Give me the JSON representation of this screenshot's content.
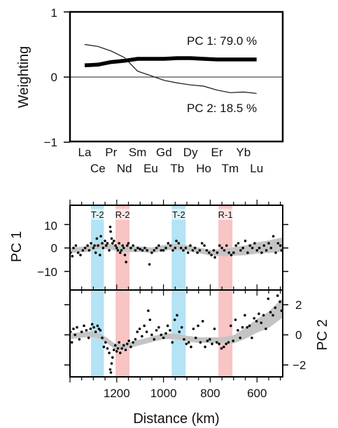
{
  "chart_data": [
    {
      "type": "line",
      "ylabel": "Weighting",
      "ylim": [
        -1,
        1
      ],
      "y_ticks": [
        "1",
        "0",
        "−1"
      ],
      "categories": [
        "La",
        "Ce",
        "Pr",
        "Nd",
        "Sm",
        "Eu",
        "Gd",
        "Tb",
        "Dy",
        "Ho",
        "Er",
        "Tm",
        "Yb",
        "Lu"
      ],
      "series": [
        {
          "name": "PC 1: 79.0 %",
          "values": [
            0.18,
            0.19,
            0.23,
            0.25,
            0.28,
            0.28,
            0.28,
            0.29,
            0.29,
            0.28,
            0.27,
            0.27,
            0.27,
            0.27
          ]
        },
        {
          "name": "PC 2: 18.5 %",
          "values": [
            0.5,
            0.47,
            0.4,
            0.3,
            0.09,
            0.02,
            -0.05,
            -0.09,
            -0.12,
            -0.14,
            -0.2,
            -0.24,
            -0.23,
            -0.25
          ]
        }
      ]
    },
    {
      "type": "scatter",
      "ylabel": "PC 1",
      "ylim": [
        -17,
        17
      ],
      "y_ticks": [
        "10",
        "0",
        "−10"
      ],
      "xlim": [
        1400,
        490
      ],
      "bands": [
        {
          "label": "T-2",
          "from": 1310,
          "to": 1255,
          "color": "#b3e3f4"
        },
        {
          "label": "R-2",
          "from": 1205,
          "to": 1145,
          "color": "#f8c4c4"
        },
        {
          "label": "T-2",
          "from": 965,
          "to": 905,
          "color": "#b3e3f4"
        },
        {
          "label": "R-1",
          "from": 765,
          "to": 705,
          "color": "#f8c4c4"
        }
      ],
      "trend": [
        [
          1400,
          -1
        ],
        [
          1330,
          -0.5
        ],
        [
          1270,
          1
        ],
        [
          1230,
          0.5
        ],
        [
          1200,
          0
        ],
        [
          1150,
          -0.5
        ],
        [
          1100,
          -0.5
        ],
        [
          1050,
          -1
        ],
        [
          1000,
          0
        ],
        [
          960,
          0.5
        ],
        [
          900,
          0
        ],
        [
          850,
          -1
        ],
        [
          800,
          -2
        ],
        [
          750,
          -2
        ],
        [
          700,
          -1.5
        ],
        [
          650,
          -1
        ],
        [
          600,
          0
        ],
        [
          550,
          0.5
        ],
        [
          490,
          1.5
        ]
      ],
      "points": [
        [
          1398,
          -2
        ],
        [
          1390,
          -3.5
        ],
        [
          1385,
          0
        ],
        [
          1375,
          1
        ],
        [
          1365,
          -2
        ],
        [
          1355,
          -3
        ],
        [
          1345,
          -1
        ],
        [
          1335,
          0
        ],
        [
          1325,
          1
        ],
        [
          1318,
          -1
        ],
        [
          1310,
          2
        ],
        [
          1300,
          0
        ],
        [
          1295,
          1
        ],
        [
          1290,
          -2
        ],
        [
          1285,
          4
        ],
        [
          1280,
          1
        ],
        [
          1272,
          -3
        ],
        [
          1268,
          5
        ],
        [
          1262,
          2
        ],
        [
          1258,
          0
        ],
        [
          1250,
          3
        ],
        [
          1245,
          1
        ],
        [
          1240,
          2
        ],
        [
          1232,
          -1
        ],
        [
          1228,
          9
        ],
        [
          1226,
          7
        ],
        [
          1222,
          4
        ],
        [
          1218,
          2
        ],
        [
          1212,
          3
        ],
        [
          1205,
          1
        ],
        [
          1200,
          0
        ],
        [
          1195,
          -1
        ],
        [
          1190,
          2
        ],
        [
          1185,
          -2
        ],
        [
          1180,
          -1
        ],
        [
          1175,
          1
        ],
        [
          1170,
          0
        ],
        [
          1165,
          -3
        ],
        [
          1160,
          -6
        ],
        [
          1155,
          1
        ],
        [
          1150,
          2
        ],
        [
          1140,
          0
        ],
        [
          1130,
          1
        ],
        [
          1120,
          -1
        ],
        [
          1110,
          0
        ],
        [
          1100,
          -0.5
        ],
        [
          1090,
          -1
        ],
        [
          1080,
          0
        ],
        [
          1070,
          -1
        ],
        [
          1060,
          -7
        ],
        [
          1050,
          -2
        ],
        [
          1040,
          -1
        ],
        [
          1030,
          0
        ],
        [
          1020,
          1
        ],
        [
          1010,
          -1
        ],
        [
          1000,
          -1
        ],
        [
          990,
          0
        ],
        [
          980,
          2
        ],
        [
          970,
          1
        ],
        [
          960,
          -1
        ],
        [
          950,
          0
        ],
        [
          945,
          3
        ],
        [
          935,
          2
        ],
        [
          925,
          0
        ],
        [
          915,
          -1
        ],
        [
          905,
          0
        ],
        [
          895,
          -2
        ],
        [
          885,
          1
        ],
        [
          875,
          -1
        ],
        [
          865,
          0
        ],
        [
          855,
          -2
        ],
        [
          845,
          -1
        ],
        [
          835,
          2
        ],
        [
          825,
          1
        ],
        [
          815,
          -1
        ],
        [
          805,
          -2
        ],
        [
          795,
          -3
        ],
        [
          785,
          -1
        ],
        [
          780,
          -4
        ],
        [
          770,
          -2
        ],
        [
          760,
          1
        ],
        [
          750,
          0
        ],
        [
          740,
          -1
        ],
        [
          730,
          1
        ],
        [
          720,
          -2
        ],
        [
          710,
          -3
        ],
        [
          700,
          -2
        ],
        [
          690,
          1
        ],
        [
          680,
          2
        ],
        [
          670,
          -1
        ],
        [
          660,
          0
        ],
        [
          650,
          3
        ],
        [
          640,
          -2
        ],
        [
          630,
          1
        ],
        [
          620,
          0
        ],
        [
          610,
          2
        ],
        [
          600,
          -1
        ],
        [
          590,
          0
        ],
        [
          580,
          -2
        ],
        [
          570,
          1
        ],
        [
          560,
          -1
        ],
        [
          550,
          2
        ],
        [
          540,
          0
        ],
        [
          530,
          5
        ],
        [
          520,
          -2
        ],
        [
          510,
          2
        ],
        [
          500,
          1
        ],
        [
          495,
          -1
        ]
      ]
    },
    {
      "type": "scatter",
      "ylabel": "PC 2",
      "ylim": [
        -3,
        3
      ],
      "y_ticks": [
        "2",
        "0",
        "−2"
      ],
      "xlim": [
        1400,
        490
      ],
      "xlabel": "Distance (km)",
      "x_ticks": [
        "1200",
        "1000",
        "800",
        "600"
      ],
      "x_tick_values": [
        1200,
        1000,
        800,
        600
      ],
      "bands": [
        {
          "from": 1310,
          "to": 1255,
          "color": "#b3e3f4"
        },
        {
          "from": 1205,
          "to": 1145,
          "color": "#f8c4c4"
        },
        {
          "from": 965,
          "to": 905,
          "color": "#b3e3f4"
        },
        {
          "from": 765,
          "to": 705,
          "color": "#f8c4c4"
        }
      ],
      "trend": [
        [
          1400,
          -0.1
        ],
        [
          1350,
          0
        ],
        [
          1300,
          0.05
        ],
        [
          1270,
          -0.1
        ],
        [
          1240,
          -0.4
        ],
        [
          1210,
          -0.75
        ],
        [
          1180,
          -0.8
        ],
        [
          1150,
          -0.7
        ],
        [
          1100,
          -0.5
        ],
        [
          1050,
          -0.3
        ],
        [
          1000,
          -0.1
        ],
        [
          950,
          -0.1
        ],
        [
          900,
          -0.25
        ],
        [
          850,
          -0.35
        ],
        [
          800,
          -0.35
        ],
        [
          750,
          -0.35
        ],
        [
          700,
          -0.3
        ],
        [
          650,
          0.1
        ],
        [
          600,
          0.6
        ],
        [
          550,
          1.0
        ],
        [
          490,
          1.8
        ]
      ],
      "points": [
        [
          1398,
          0.2
        ],
        [
          1392,
          -0.5
        ],
        [
          1385,
          0.4
        ],
        [
          1378,
          0
        ],
        [
          1370,
          0.5
        ],
        [
          1360,
          -0.3
        ],
        [
          1350,
          0.2
        ],
        [
          1340,
          0.6
        ],
        [
          1330,
          0.3
        ],
        [
          1320,
          -0.2
        ],
        [
          1312,
          0.4
        ],
        [
          1305,
          0.7
        ],
        [
          1298,
          0.5
        ],
        [
          1290,
          0.2
        ],
        [
          1282,
          0.6
        ],
        [
          1276,
          0.4
        ],
        [
          1270,
          0.3
        ],
        [
          1262,
          -0.2
        ],
        [
          1255,
          -0.8
        ],
        [
          1248,
          -0.5
        ],
        [
          1240,
          -0.9
        ],
        [
          1232,
          -1.2
        ],
        [
          1228,
          -2.3
        ],
        [
          1225,
          -2.5
        ],
        [
          1222,
          -1.9
        ],
        [
          1218,
          -1.5
        ],
        [
          1212,
          -1.0
        ],
        [
          1206,
          -0.7
        ],
        [
          1200,
          -1.1
        ],
        [
          1195,
          -0.9
        ],
        [
          1190,
          -0.5
        ],
        [
          1185,
          -1.2
        ],
        [
          1178,
          -0.9
        ],
        [
          1170,
          -0.7
        ],
        [
          1162,
          -1.0
        ],
        [
          1155,
          -0.6
        ],
        [
          1148,
          -0.4
        ],
        [
          1140,
          -0.8
        ],
        [
          1130,
          -0.5
        ],
        [
          1120,
          -0.3
        ],
        [
          1112,
          0.2
        ],
        [
          1102,
          0.4
        ],
        [
          1092,
          -0.1
        ],
        [
          1082,
          0.6
        ],
        [
          1072,
          0.2
        ],
        [
          1065,
          1.6
        ],
        [
          1058,
          1.0
        ],
        [
          1050,
          0
        ],
        [
          1040,
          -0.3
        ],
        [
          1030,
          0.3
        ],
        [
          1020,
          0.5
        ],
        [
          1010,
          0
        ],
        [
          1000,
          -0.2
        ],
        [
          990,
          0.1
        ],
        [
          982,
          0.6
        ],
        [
          972,
          0.3
        ],
        [
          962,
          -0.5
        ],
        [
          952,
          1.0
        ],
        [
          942,
          1.3
        ],
        [
          932,
          0.2
        ],
        [
          922,
          0.5
        ],
        [
          912,
          -0.3
        ],
        [
          902,
          -0.6
        ],
        [
          892,
          -0.5
        ],
        [
          882,
          -0.8
        ],
        [
          872,
          0.4
        ],
        [
          862,
          -0.2
        ],
        [
          852,
          0.6
        ],
        [
          842,
          -0.5
        ],
        [
          832,
          0.9
        ],
        [
          822,
          -0.8
        ],
        [
          812,
          -0.4
        ],
        [
          802,
          -0.3
        ],
        [
          792,
          -0.6
        ],
        [
          782,
          0.4
        ],
        [
          772,
          -0.5
        ],
        [
          762,
          -0.6
        ],
        [
          752,
          -0.9
        ],
        [
          742,
          -0.8
        ],
        [
          732,
          -0.6
        ],
        [
          722,
          -0.5
        ],
        [
          712,
          0.6
        ],
        [
          702,
          -0.4
        ],
        [
          692,
          1.0
        ],
        [
          682,
          0.3
        ],
        [
          672,
          -0.2
        ],
        [
          662,
          0.5
        ],
        [
          652,
          1.3
        ],
        [
          642,
          0.5
        ],
        [
          632,
          0.6
        ],
        [
          622,
          -0.2
        ],
        [
          612,
          1.1
        ],
        [
          602,
          0.9
        ],
        [
          592,
          1.4
        ],
        [
          582,
          0.8
        ],
        [
          572,
          1.3
        ],
        [
          562,
          0.4
        ],
        [
          552,
          2.4
        ],
        [
          542,
          1.5
        ],
        [
          532,
          1.3
        ],
        [
          522,
          1.8
        ],
        [
          512,
          2.6
        ],
        [
          502,
          2.2
        ],
        [
          495,
          1.6
        ]
      ]
    }
  ]
}
